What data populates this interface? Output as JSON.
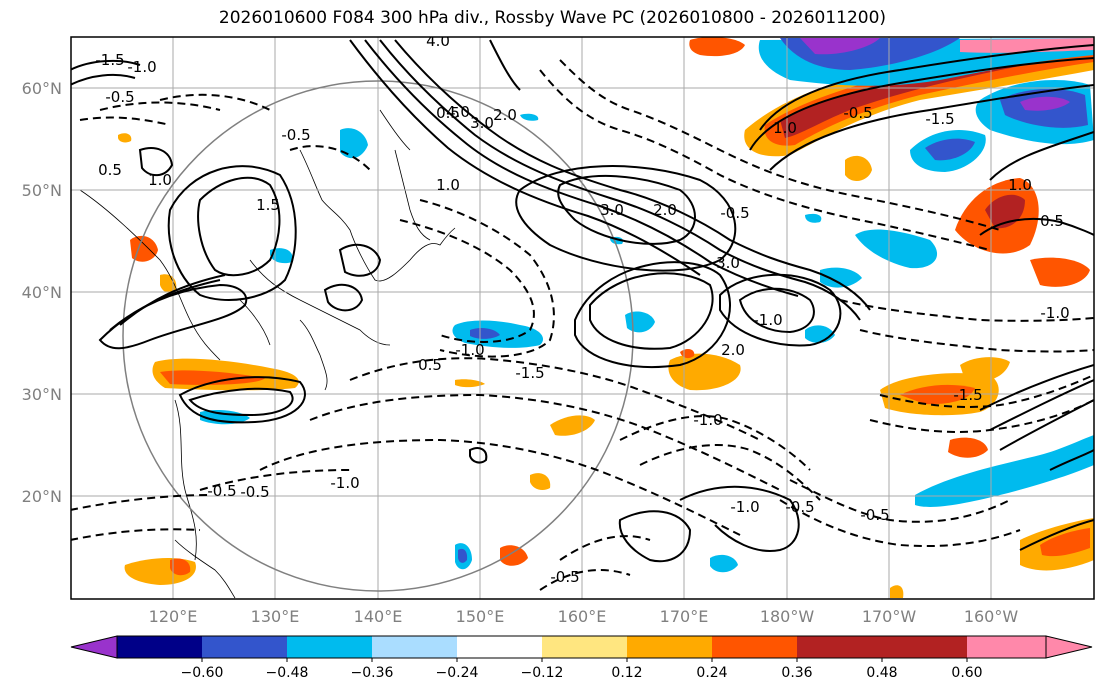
{
  "title": "2026010600 F084 300 hPa div., Rossby Wave PC (2026010800 - 2026011200)",
  "map": {
    "lat_labels": [
      "60°N",
      "50°N",
      "40°N",
      "30°N",
      "20°N"
    ],
    "lon_labels": [
      "120°E",
      "130°E",
      "140°E",
      "150°E",
      "160°E",
      "170°E",
      "180°W",
      "170°W",
      "160°W"
    ],
    "contour_labels": [
      "-1.5",
      "-1.0",
      "-0.5",
      "0.5",
      "1.0",
      "1.5",
      "2.0",
      "3.0",
      "4.0",
      "4.0",
      "3.0",
      "2.0",
      "1.0",
      "0.5",
      "-0.5",
      "-1.0",
      "-1.5",
      "-0.5",
      "-1.0",
      "-0.5",
      "3.0",
      "2.0",
      "-0.5",
      "-1.0",
      "1.0",
      "-0.5",
      "-1.0",
      "-0.5",
      "-1.5",
      "-1.0",
      "0.5",
      "-0.5",
      "-1.0",
      "0.5",
      "1.0",
      "-1.5",
      "-0.5"
    ]
  },
  "colorbar": {
    "ticks": [
      "−0.60",
      "−0.48",
      "−0.36",
      "−0.24",
      "−0.12",
      "0.12",
      "0.24",
      "0.36",
      "0.48",
      "0.60"
    ],
    "colors": [
      "#9933cc",
      "#000088",
      "#3355cc",
      "#00bbee",
      "#aaddff",
      "#ffffff",
      "#ffe680",
      "#ffaa00",
      "#ff5500",
      "#b22222",
      "#ff88aa"
    ]
  }
}
